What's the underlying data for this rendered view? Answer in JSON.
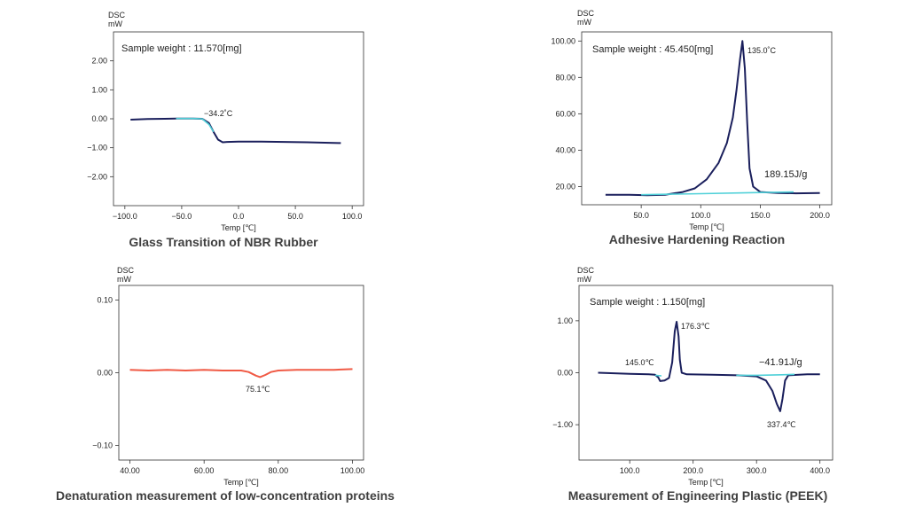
{
  "chart_data": [
    {
      "type": "line",
      "caption": "Glass Transition of NBR Rubber",
      "ylabel": "DSC\nmW",
      "xlabel": "Temp [℃]",
      "xlim": [
        -110,
        110
      ],
      "ylim": [
        -3,
        3
      ],
      "xticks": [
        -100,
        -50,
        0,
        50,
        100
      ],
      "xtick_labels": [
        "−100.0",
        "−50.0",
        "0.0",
        "50.0",
        "100.0"
      ],
      "yticks": [
        2,
        1,
        0,
        -1,
        -2
      ],
      "ytick_labels": [
        "2.00",
        "1.00",
        "0.00",
        "−1.00",
        "−2.00"
      ],
      "grid": false,
      "annotations": [
        {
          "text": "Sample weight : 11.570[mg]",
          "kind": "note"
        },
        {
          "text": "−34.2˚C",
          "x": -34.2,
          "y": 0.0,
          "kind": "point"
        }
      ],
      "series": [
        {
          "color": "#1a1f5c",
          "points": [
            [
              -95,
              -0.03
            ],
            [
              -80,
              -0.01
            ],
            [
              -65,
              0.0
            ],
            [
              -55,
              0.01
            ],
            [
              -40,
              0.01
            ],
            [
              -32,
              0.0
            ],
            [
              -26,
              -0.15
            ],
            [
              -22,
              -0.45
            ],
            [
              -18,
              -0.72
            ],
            [
              -14,
              -0.81
            ],
            [
              -10,
              -0.8
            ],
            [
              0,
              -0.79
            ],
            [
              20,
              -0.79
            ],
            [
              40,
              -0.8
            ],
            [
              60,
              -0.81
            ],
            [
              80,
              -0.83
            ],
            [
              90,
              -0.84
            ]
          ]
        },
        {
          "color": "#4fd0d8",
          "points": [
            [
              -55,
              0.01
            ],
            [
              -40,
              0.01
            ],
            [
              -32,
              0.0
            ],
            [
              -26,
              -0.2
            ],
            [
              -22,
              -0.45
            ]
          ]
        }
      ]
    },
    {
      "type": "line",
      "caption": "Adhesive Hardening Reaction",
      "ylabel": "DSC\nmW",
      "xlabel": "Temp [℃]",
      "xlim": [
        0,
        210
      ],
      "ylim": [
        10,
        105
      ],
      "xticks": [
        50,
        100,
        150,
        200
      ],
      "xtick_labels": [
        "50.0",
        "100.0",
        "150.0",
        "200.0"
      ],
      "yticks": [
        100,
        80,
        60,
        40,
        20
      ],
      "ytick_labels": [
        "100.00",
        "80.00",
        "60.00",
        "40.00",
        "20.00"
      ],
      "grid": false,
      "annotations": [
        {
          "text": "Sample weight : 45.450[mg]",
          "kind": "note"
        },
        {
          "text": "135.0˚C",
          "x": 135.0,
          "y": 100.0,
          "kind": "peak"
        },
        {
          "text": "189.15J/g",
          "kind": "area"
        }
      ],
      "series": [
        {
          "color": "#1a1f5c",
          "points": [
            [
              20,
              15.5
            ],
            [
              40,
              15.5
            ],
            [
              55,
              15.2
            ],
            [
              70,
              15.5
            ],
            [
              85,
              17
            ],
            [
              95,
              19
            ],
            [
              105,
              24
            ],
            [
              115,
              33
            ],
            [
              122,
              44
            ],
            [
              127,
              58
            ],
            [
              130,
              73
            ],
            [
              133,
              90
            ],
            [
              135,
              100
            ],
            [
              137,
              85
            ],
            [
              139,
              55
            ],
            [
              141,
              30
            ],
            [
              144,
              20
            ],
            [
              150,
              17
            ],
            [
              165,
              16.5
            ],
            [
              180,
              16.3
            ],
            [
              200,
              16.5
            ]
          ]
        },
        {
          "color": "#4fd0d8",
          "points": [
            [
              50,
              15.5
            ],
            [
              100,
              16.1
            ],
            [
              150,
              16.7
            ],
            [
              178,
              17.0
            ]
          ]
        }
      ]
    },
    {
      "type": "line",
      "caption": "Denaturation measurement of low-concentration proteins",
      "ylabel": "DSC\nmW",
      "xlabel": "Temp [℃]",
      "xlim": [
        37,
        103
      ],
      "ylim": [
        -0.12,
        0.12
      ],
      "xticks": [
        40,
        60,
        80,
        100
      ],
      "xtick_labels": [
        "40.00",
        "60.00",
        "80.00",
        "100.00"
      ],
      "yticks": [
        0.1,
        0.0,
        -0.1
      ],
      "ytick_labels": [
        "0.10",
        "0.00",
        "−0.10"
      ],
      "grid": false,
      "annotations": [
        {
          "text": "75.1℃",
          "x": 75.1,
          "y": -0.006,
          "kind": "point"
        }
      ],
      "series": [
        {
          "color": "#f05a45",
          "points": [
            [
              40,
              0.004
            ],
            [
              45,
              0.003
            ],
            [
              50,
              0.004
            ],
            [
              55,
              0.003
            ],
            [
              60,
              0.004
            ],
            [
              65,
              0.003
            ],
            [
              70,
              0.003
            ],
            [
              72,
              0.001
            ],
            [
              74,
              -0.004
            ],
            [
              75.1,
              -0.006
            ],
            [
              76.5,
              -0.003
            ],
            [
              78,
              0.001
            ],
            [
              80,
              0.003
            ],
            [
              85,
              0.004
            ],
            [
              90,
              0.004
            ],
            [
              95,
              0.004
            ],
            [
              100,
              0.005
            ]
          ]
        }
      ]
    },
    {
      "type": "line",
      "caption": "Measurement of Engineering Plastic (PEEK)",
      "ylabel": "DSC\nmW",
      "xlabel": "Temp [℃]",
      "xlim": [
        20,
        420
      ],
      "ylim": [
        -1.68,
        1.68
      ],
      "xticks": [
        100,
        200,
        300,
        400
      ],
      "xtick_labels": [
        "100.0",
        "200.0",
        "300.0",
        "400.0"
      ],
      "yticks": [
        1.0,
        0.0,
        -1.0
      ],
      "ytick_labels": [
        "1.00",
        "0.00",
        "−1.00"
      ],
      "grid": false,
      "annotations": [
        {
          "text": "Sample weight : 1.150[mg]",
          "kind": "note"
        },
        {
          "text": "176.3℃",
          "x": 176.3,
          "y": 0.98,
          "kind": "peak"
        },
        {
          "text": "145.0℃",
          "x": 145.0,
          "y": -0.02,
          "kind": "point"
        },
        {
          "text": "−41.91J/g",
          "kind": "area"
        },
        {
          "text": "337.4℃",
          "x": 337.4,
          "y": -0.74,
          "kind": "peak"
        }
      ],
      "series": [
        {
          "color": "#1a1f5c",
          "points": [
            [
              50,
              0.0
            ],
            [
              100,
              -0.02
            ],
            [
              130,
              -0.03
            ],
            [
              140,
              -0.04
            ],
            [
              145,
              -0.09
            ],
            [
              148,
              -0.16
            ],
            [
              155,
              -0.15
            ],
            [
              162,
              -0.1
            ],
            [
              167,
              0.2
            ],
            [
              171,
              0.8
            ],
            [
              174,
              0.98
            ],
            [
              177,
              0.7
            ],
            [
              179,
              0.25
            ],
            [
              182,
              0.0
            ],
            [
              190,
              -0.03
            ],
            [
              230,
              -0.04
            ],
            [
              270,
              -0.05
            ],
            [
              300,
              -0.07
            ],
            [
              315,
              -0.15
            ],
            [
              325,
              -0.35
            ],
            [
              332,
              -0.6
            ],
            [
              337.4,
              -0.74
            ],
            [
              341,
              -0.5
            ],
            [
              345,
              -0.15
            ],
            [
              350,
              -0.05
            ],
            [
              380,
              -0.03
            ],
            [
              400,
              -0.03
            ]
          ]
        },
        {
          "color": "#4fd0d8",
          "points": [
            [
              140,
              -0.05
            ],
            [
              150,
              -0.06
            ]
          ]
        },
        {
          "color": "#4fd0d8",
          "points": [
            [
              268,
              -0.05
            ],
            [
              300,
              -0.05
            ],
            [
              340,
              -0.04
            ],
            [
              360,
              -0.03
            ]
          ]
        }
      ]
    }
  ]
}
